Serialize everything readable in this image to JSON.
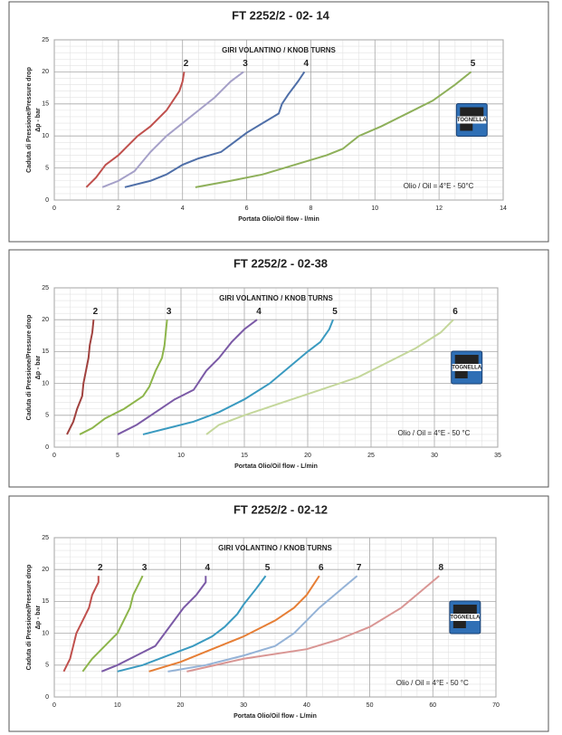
{
  "chart_data": [
    {
      "type": "line",
      "title": "FT 2252/2 - 02- 14",
      "x_label": "Portata Olio/Oil flow -  l/min",
      "y_label": "Caduta di Pressione/Pressure drop",
      "y_unit_label": "Δp - bar",
      "annotation": "GIRI VOLANTINO / KNOB TURNS",
      "oil_note": "Olio / Oil = 4°E - 50°C",
      "logo": "TOGNELLA",
      "xlim": [
        0,
        14
      ],
      "xticks": [
        0,
        2,
        4,
        6,
        8,
        10,
        12,
        14
      ],
      "ylim": [
        0,
        25
      ],
      "yticks": [
        0,
        5,
        10,
        15,
        20,
        25
      ],
      "grid": true,
      "series": [
        {
          "name": "2",
          "color": "#c0504d",
          "x": [
            1,
            1.3,
            1.6,
            2,
            2.3,
            2.6,
            3,
            3.3,
            3.5,
            3.7,
            3.9,
            4,
            4.05
          ],
          "values": [
            2,
            3.5,
            5.5,
            7,
            8.5,
            10,
            11.5,
            13,
            14,
            15.5,
            17,
            18.5,
            20
          ]
        },
        {
          "name": "3",
          "color": "#a5a0c8",
          "x": [
            1.5,
            2,
            2.5,
            3,
            3.5,
            4,
            4.5,
            5,
            5.5,
            5.9
          ],
          "values": [
            2,
            3,
            4.5,
            7.5,
            10,
            12,
            14,
            16,
            18.5,
            20
          ]
        },
        {
          "name": "4",
          "color": "#4f6fa8",
          "x": [
            2.2,
            3,
            3.5,
            4,
            4.5,
            5.2,
            5.6,
            6,
            6.5,
            7,
            7.1,
            7.3,
            7.6,
            7.8
          ],
          "values": [
            2,
            3,
            4,
            5.5,
            6.5,
            7.5,
            9,
            10.5,
            12,
            13.5,
            15,
            16.5,
            18.5,
            20
          ]
        },
        {
          "name": "5",
          "color": "#8eb05a",
          "x": [
            4.4,
            5.5,
            6.5,
            7.5,
            8.5,
            9,
            9.5,
            10.2,
            11,
            11.8,
            12.5,
            13
          ],
          "values": [
            2,
            3,
            4,
            5.5,
            7,
            8,
            10,
            11.5,
            13.5,
            15.5,
            18,
            20
          ]
        }
      ]
    },
    {
      "type": "line",
      "title": "FT 2252/2 - 02-38",
      "x_label": "Portata Olio/Oil flow - L/min",
      "y_label": "Caduta di Pressione/Pressure drop",
      "y_unit_label": "Δp - bar",
      "annotation": "GIRI VOLANTINO / KNOB TURNS",
      "oil_note": "Olio / Oil = 4°E - 50 °C",
      "logo": "TOGNELLA",
      "xlim": [
        0,
        35
      ],
      "xticks": [
        0,
        5,
        10,
        15,
        20,
        25,
        30,
        35
      ],
      "ylim": [
        0,
        25
      ],
      "yticks": [
        0,
        5,
        10,
        15,
        20,
        25
      ],
      "grid": true,
      "series": [
        {
          "name": "2",
          "color": "#a0413e",
          "x": [
            1,
            1.5,
            1.8,
            2.2,
            2.3,
            2.5,
            2.7,
            2.8,
            3,
            3.1
          ],
          "values": [
            2,
            4,
            6,
            8,
            10,
            12,
            14,
            16,
            18,
            20
          ]
        },
        {
          "name": "3",
          "color": "#8db54b",
          "x": [
            2,
            3,
            4,
            5.5,
            7,
            7.5,
            8,
            8.5,
            8.7,
            8.8,
            8.9
          ],
          "values": [
            2,
            3,
            4.5,
            6,
            8,
            9.5,
            12,
            14,
            16,
            18,
            20
          ]
        },
        {
          "name": "4",
          "color": "#7b5aa6",
          "x": [
            5,
            6.5,
            8,
            9.5,
            11,
            11.5,
            12,
            13,
            14,
            15,
            16
          ],
          "values": [
            2,
            3.5,
            5.5,
            7.5,
            9,
            10.5,
            12,
            14,
            16.5,
            18.5,
            20
          ]
        },
        {
          "name": "5",
          "color": "#3a9ac0",
          "x": [
            7,
            9,
            11,
            13,
            15,
            17,
            18.5,
            20,
            21,
            21.7,
            22
          ],
          "values": [
            2,
            3,
            4,
            5.5,
            7.5,
            10,
            12.5,
            15,
            16.5,
            18.5,
            20
          ]
        },
        {
          "name": "6",
          "color": "#c4d79b",
          "x": [
            12,
            13,
            15,
            18,
            21,
            24,
            26,
            28.5,
            30.5,
            31.5
          ],
          "values": [
            2,
            3.5,
            5,
            7,
            9,
            11,
            13,
            15.5,
            18,
            20
          ]
        }
      ]
    },
    {
      "type": "line",
      "title": "FT 2252/2 - 02-12",
      "x_label": "Portata Olio/Oil flow - L/min",
      "y_label": "Caduta di Pressione/Pressure drop",
      "y_unit_label": "Δp - bar",
      "annotation": "GIRI VOLANTINO / KNOB TURNS",
      "oil_note": "Olio / Oil = 4°E - 50 °C",
      "logo": "TOGNELLA",
      "xlim": [
        0,
        70
      ],
      "xticks": [
        0,
        10,
        20,
        30,
        40,
        50,
        60,
        70
      ],
      "ylim": [
        0,
        25
      ],
      "yticks": [
        0,
        5,
        10,
        15,
        20,
        25
      ],
      "grid": true,
      "series": [
        {
          "name": "2",
          "color": "#c0504d",
          "x": [
            1.5,
            2.5,
            3,
            3.5,
            4.5,
            5.5,
            6,
            7,
            7
          ],
          "values": [
            4,
            6,
            8,
            10,
            12,
            14,
            16,
            18,
            19
          ]
        },
        {
          "name": "3",
          "color": "#8db54b",
          "x": [
            4.5,
            6,
            8,
            10,
            11,
            12,
            12.5,
            13.5,
            14
          ],
          "values": [
            4,
            6,
            8,
            10,
            12,
            14,
            16,
            18,
            19
          ]
        },
        {
          "name": "4",
          "color": "#7b5aa6",
          "x": [
            7.5,
            10,
            13,
            16,
            17.5,
            19,
            20.5,
            22.5,
            24,
            24
          ],
          "values": [
            4,
            5,
            6.5,
            8,
            10,
            12,
            14,
            16,
            18,
            19
          ]
        },
        {
          "name": "5",
          "color": "#3a9ac0",
          "x": [
            10,
            14,
            18,
            22,
            25,
            27,
            29,
            30,
            32,
            33.5
          ],
          "values": [
            4,
            5,
            6.5,
            8,
            9.5,
            11,
            13,
            14.5,
            17,
            19
          ]
        },
        {
          "name": "6",
          "color": "#e67e35",
          "x": [
            15,
            20,
            25,
            30,
            35,
            38,
            40,
            41,
            42
          ],
          "values": [
            4,
            5.5,
            7.5,
            9.5,
            12,
            14,
            16,
            17.5,
            19
          ]
        },
        {
          "name": "7",
          "color": "#95b3d7",
          "x": [
            18,
            24,
            30,
            35,
            38,
            40,
            42,
            45,
            48
          ],
          "values": [
            4,
            5,
            6.5,
            8,
            10,
            12,
            14,
            16.5,
            19
          ]
        },
        {
          "name": "8",
          "color": "#d99694",
          "x": [
            21,
            30,
            40,
            45,
            50,
            55,
            58,
            61
          ],
          "values": [
            4,
            6,
            7.5,
            9,
            11,
            14,
            16.5,
            19
          ]
        }
      ]
    }
  ]
}
